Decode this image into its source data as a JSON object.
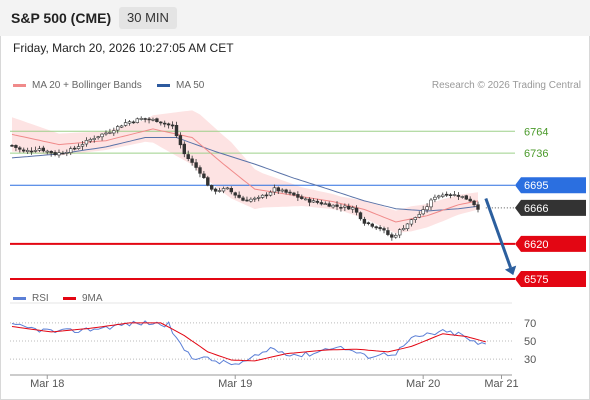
{
  "header": {
    "symbol": "S&P 500 (CME)",
    "interval": "30 MIN"
  },
  "timestamp": "Friday, March 20, 2026 10:27:05 AM CET",
  "legend": {
    "ma20_label": "MA 20 + Bollinger Bands",
    "ma50_label": "MA 50",
    "copyright": "Research © 2026 Trading Central"
  },
  "rsi_legend": {
    "rsi_label": "RSI",
    "ma_label": "9MA"
  },
  "colors": {
    "ma20": "#f08a8a",
    "ma50": "#5a73a8",
    "bollinger_fill": "#fde3e3",
    "resistance": "#2b6fe0",
    "support": "#e30613",
    "target_line": "#9ed08a",
    "current": "#333333",
    "rsi": "#5b7fd6",
    "rsi_ma": "#e30613",
    "arrow": "#2c5f9e"
  },
  "chart_data": [
    {
      "type": "candlestick",
      "title": "S&P 500 (CME) 30 MIN",
      "x_ticks": [
        "Mar 18",
        "Mar 19",
        "Mar 20",
        "Mar 21"
      ],
      "x_tick_index": [
        9,
        57,
        105,
        125
      ],
      "bar_count": 120,
      "y_range": [
        6561,
        6804
      ],
      "levels": [
        {
          "value": 6764,
          "label": "6764",
          "kind": "target"
        },
        {
          "value": 6736,
          "label": "6736",
          "kind": "target"
        },
        {
          "value": 6695,
          "label": "6695",
          "kind": "resistance"
        },
        {
          "value": 6666,
          "label": "6666",
          "kind": "current"
        },
        {
          "value": 6620,
          "label": "6620",
          "kind": "support"
        },
        {
          "value": 6575,
          "label": "6575",
          "kind": "support"
        }
      ],
      "close_anchors": [
        [
          0,
          6746
        ],
        [
          3,
          6738
        ],
        [
          7,
          6742
        ],
        [
          11,
          6735
        ],
        [
          15,
          6740
        ],
        [
          18,
          6748
        ],
        [
          21,
          6756
        ],
        [
          25,
          6764
        ],
        [
          29,
          6775
        ],
        [
          33,
          6780
        ],
        [
          37,
          6778
        ],
        [
          41,
          6770
        ],
        [
          44,
          6735
        ],
        [
          48,
          6712
        ],
        [
          51,
          6688
        ],
        [
          55,
          6690
        ],
        [
          59,
          6676
        ],
        [
          63,
          6678
        ],
        [
          67,
          6690
        ],
        [
          71,
          6684
        ],
        [
          75,
          6676
        ],
        [
          79,
          6672
        ],
        [
          83,
          6668
        ],
        [
          87,
          6666
        ],
        [
          90,
          6648
        ],
        [
          94,
          6640
        ],
        [
          97,
          6628
        ],
        [
          101,
          6646
        ],
        [
          105,
          6662
        ],
        [
          108,
          6681
        ],
        [
          111,
          6684
        ],
        [
          114,
          6682
        ],
        [
          117,
          6676
        ],
        [
          119,
          6666
        ]
      ],
      "ma20_anchors": [
        [
          0,
          6760
        ],
        [
          12,
          6747
        ],
        [
          24,
          6752
        ],
        [
          36,
          6767
        ],
        [
          46,
          6756
        ],
        [
          54,
          6722
        ],
        [
          62,
          6690
        ],
        [
          72,
          6682
        ],
        [
          82,
          6674
        ],
        [
          90,
          6664
        ],
        [
          98,
          6648
        ],
        [
          106,
          6656
        ],
        [
          114,
          6670
        ],
        [
          119,
          6675
        ]
      ],
      "bollinger_width_anchors": [
        [
          0,
          22
        ],
        [
          12,
          14
        ],
        [
          24,
          12
        ],
        [
          34,
          14
        ],
        [
          42,
          28
        ],
        [
          48,
          38
        ],
        [
          56,
          36
        ],
        [
          64,
          22
        ],
        [
          74,
          12
        ],
        [
          84,
          9
        ],
        [
          94,
          13
        ],
        [
          102,
          16
        ],
        [
          110,
          14
        ],
        [
          119,
          11
        ]
      ],
      "ma50_anchors": [
        [
          0,
          6730
        ],
        [
          12,
          6735
        ],
        [
          24,
          6744
        ],
        [
          34,
          6756
        ],
        [
          42,
          6756
        ],
        [
          52,
          6738
        ],
        [
          62,
          6722
        ],
        [
          72,
          6704
        ],
        [
          82,
          6688
        ],
        [
          90,
          6675
        ],
        [
          98,
          6665
        ],
        [
          106,
          6662
        ],
        [
          114,
          6665
        ],
        [
          119,
          6668
        ]
      ],
      "forecast_arrow": {
        "from_index": 121,
        "from_value": 6678,
        "to_index": 128,
        "to_value": 6580
      }
    },
    {
      "type": "line",
      "title": "RSI",
      "y_range": [
        18,
        82
      ],
      "y_ticks": [
        70,
        50,
        30
      ],
      "series": [
        {
          "name": "RSI",
          "anchors": [
            [
              0,
              67
            ],
            [
              6,
              63
            ],
            [
              12,
              60
            ],
            [
              18,
              62
            ],
            [
              24,
              65
            ],
            [
              30,
              69
            ],
            [
              35,
              70
            ],
            [
              40,
              68
            ],
            [
              43,
              45
            ],
            [
              46,
              33
            ],
            [
              50,
              30
            ],
            [
              54,
              26
            ],
            [
              58,
              24
            ],
            [
              62,
              32
            ],
            [
              66,
              42
            ],
            [
              70,
              37
            ],
            [
              74,
              34
            ],
            [
              78,
              38
            ],
            [
              82,
              44
            ],
            [
              86,
              41
            ],
            [
              90,
              33
            ],
            [
              94,
              35
            ],
            [
              98,
              37
            ],
            [
              102,
              52
            ],
            [
              106,
              57
            ],
            [
              110,
              60
            ],
            [
              114,
              58
            ],
            [
              117,
              51
            ],
            [
              119,
              46
            ],
            [
              121,
              47
            ]
          ]
        },
        {
          "name": "9MA",
          "anchors": [
            [
              0,
              66
            ],
            [
              10,
              60
            ],
            [
              20,
              64
            ],
            [
              30,
              70
            ],
            [
              38,
              70
            ],
            [
              44,
              56
            ],
            [
              50,
              38
            ],
            [
              56,
              29
            ],
            [
              62,
              28
            ],
            [
              70,
              36
            ],
            [
              80,
              40
            ],
            [
              88,
              41
            ],
            [
              96,
              38
            ],
            [
              102,
              44
            ],
            [
              110,
              58
            ],
            [
              116,
              55
            ],
            [
              121,
              49
            ]
          ]
        }
      ]
    }
  ]
}
